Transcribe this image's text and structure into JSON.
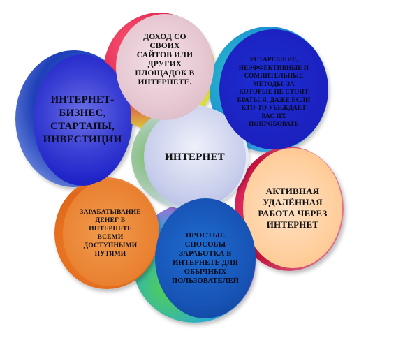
{
  "diagram": {
    "center": "ИНТЕРНЕТ",
    "nodes": {
      "business": "ИНТЕРНЕТ-БИЗНЕС, СТАРТАПЫ, ИНВЕСТИЦИИ",
      "own_sites": "ДОХОД СО СВОИХ САЙТОВ ИЛИ ДРУГИХ ПЛОЩАДОК В ИНТЕРНЕТЕ.",
      "outdated": "УСТАРЕВШИЕ, НЕЭФФЕКТИВНЫЕ И СОМНИТЕЛЬНЫЕ МЕТОДЫ, ЗА КОТОРЫЕ НЕ СТОИТ БРАТЬСЯ, ДАЖЕ ЕСЛИ КТО-ТО УБЕЖДАЕТ ВАС ИХ ПОПРОБОВАТЬ",
      "remote_work": "АКТИВНАЯ УДАЛЁННАЯ РАБОТА ЧЕРЕЗ ИНТЕРНЕТ",
      "simple_ways": "ПРОСТЫЕ СПОСОБЫ ЗАРАБОТКА В ИНТЕРНЕТЕ ДЛЯ ОБЫЧНЫХ ПОЛЬЗОВАТЕЛЕЙ",
      "all_ways": "ЗАРАБАТЫВАНИЕ ДЕНЕГ В ИНТЕРНЕТЕ ВСЕМИ ДОСТУПНЫМИ ПУТЯМИ"
    }
  }
}
